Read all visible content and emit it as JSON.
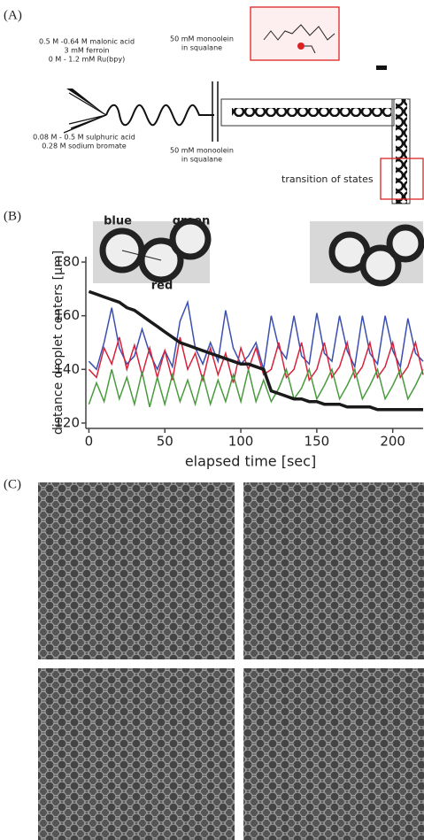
{
  "panel_a": {
    "label": "(A)",
    "inlet_top": [
      "0.5 M -0.64 M malonic acid",
      "3 mM ferroin",
      "0 M - 1.2 mM Ru(bpy)"
    ],
    "inlet_bottom": [
      "0.08 M - 0.5 M sulphuric acid",
      "0.28 M sodium bromate"
    ],
    "oil_top": [
      "50 mM  monoolein",
      "in squalane"
    ],
    "oil_bottom": [
      "50 mM  monoolein",
      "in squalane"
    ],
    "transition": "transition of states"
  },
  "panel_b": {
    "label": "(B)"
  },
  "panel_c": {
    "label": "(C)"
  },
  "chart_data": {
    "type": "line",
    "x_label": "elapsed time [sec]",
    "y_label": "distance droplet centers [μm]",
    "x": [
      0,
      5,
      10,
      15,
      20,
      25,
      30,
      35,
      40,
      45,
      50,
      55,
      60,
      65,
      70,
      75,
      80,
      85,
      90,
      95,
      100,
      105,
      110,
      115,
      120,
      125,
      130,
      135,
      140,
      145,
      150,
      155,
      160,
      165,
      170,
      175,
      180,
      185,
      190,
      195,
      200,
      205,
      210,
      215,
      220
    ],
    "series": [
      {
        "name": "blue",
        "color": "#3b4fb0",
        "values": [
          143,
          140,
          150,
          163,
          148,
          142,
          145,
          155,
          146,
          140,
          147,
          141,
          158,
          165,
          148,
          142,
          150,
          143,
          162,
          148,
          142,
          145,
          150,
          140,
          160,
          148,
          144,
          160,
          145,
          142,
          161,
          146,
          143,
          160,
          147,
          141,
          160,
          146,
          142,
          160,
          147,
          141,
          159,
          146,
          143
        ]
      },
      {
        "name": "red",
        "color": "#d8213b",
        "values": [
          140,
          137,
          148,
          142,
          152,
          140,
          149,
          138,
          148,
          137,
          147,
          136,
          152,
          140,
          146,
          136,
          148,
          138,
          146,
          135,
          148,
          140,
          148,
          138,
          140,
          150,
          137,
          140,
          150,
          136,
          140,
          150,
          137,
          141,
          150,
          137,
          141,
          150,
          137,
          141,
          150,
          137,
          141,
          150,
          138
        ]
      },
      {
        "name": "green",
        "color": "#4a9a3e",
        "values": [
          127,
          135,
          128,
          140,
          129,
          137,
          127,
          139,
          126,
          137,
          127,
          138,
          128,
          136,
          127,
          138,
          127,
          136,
          128,
          138,
          128,
          140,
          128,
          136,
          128,
          133,
          140,
          129,
          133,
          140,
          129,
          134,
          140,
          129,
          134,
          140,
          129,
          134,
          140,
          129,
          134,
          140,
          129,
          134,
          140
        ]
      },
      {
        "color": "#1a1a1a",
        "values": [
          169,
          168,
          167,
          166,
          165,
          163,
          162,
          160,
          158,
          156,
          154,
          152,
          150,
          149,
          148,
          147,
          146,
          145,
          144,
          143,
          142,
          142,
          141,
          140,
          132,
          131,
          130,
          129,
          129,
          128,
          128,
          127,
          127,
          127,
          126,
          126,
          126,
          126,
          125,
          125,
          125,
          125,
          125,
          125,
          125
        ]
      }
    ],
    "xlim": [
      -2,
      220
    ],
    "ylim": [
      118,
      182
    ],
    "xticks": [
      0,
      50,
      100,
      150,
      200
    ],
    "yticks": [
      120,
      140,
      160,
      180
    ]
  }
}
